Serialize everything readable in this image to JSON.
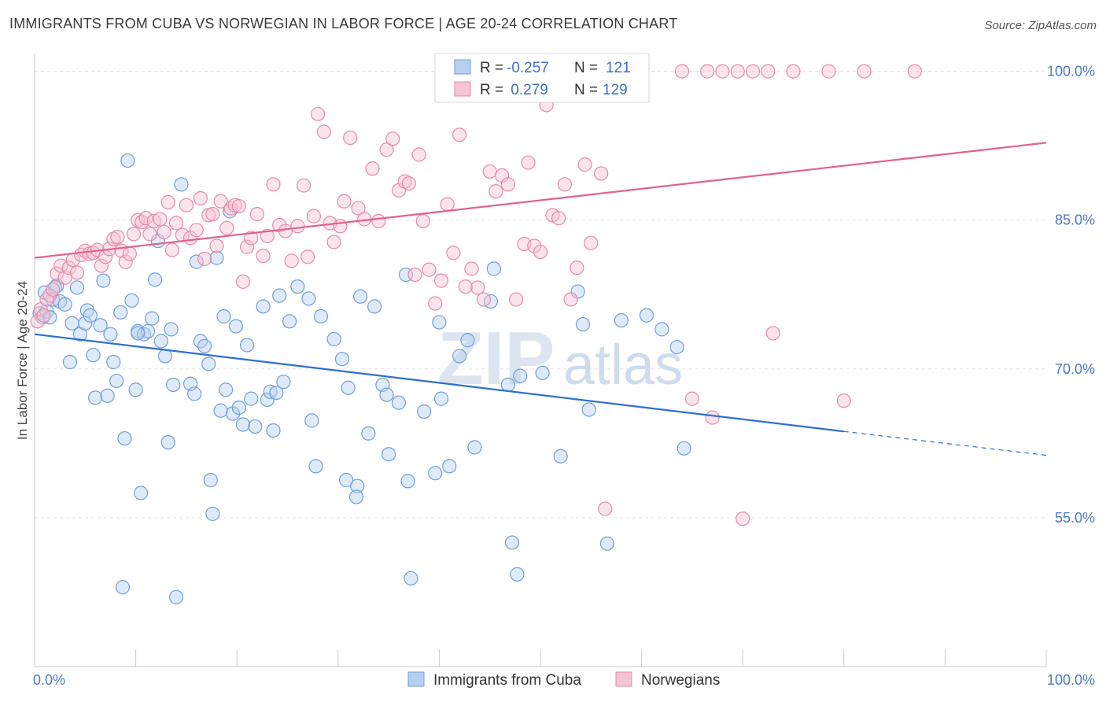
{
  "title": "IMMIGRANTS FROM CUBA VS NORWEGIAN IN LABOR FORCE | AGE 20-24 CORRELATION CHART",
  "source": "Source: ZipAtlas.com",
  "watermark": {
    "zip": "ZIP",
    "atlas": "atlas"
  },
  "colors": {
    "cuba_fill": "#b8d0f0",
    "cuba_stroke": "#6f9fd8",
    "cuba_line": "#2f6fd0",
    "nor_fill": "#f6c4d4",
    "nor_stroke": "#e68aa8",
    "nor_line": "#e0628e",
    "grid": "#e3e3e3",
    "tick_label": "#4a7ac4"
  },
  "legend": {
    "rows": [
      {
        "r_label": "R = ",
        "r_value": "-0.257",
        "n_label": "N = ",
        "n_value": "121"
      },
      {
        "r_label": "R = ",
        "r_value": " 0.279",
        "n_label": "N = ",
        "n_value": "129"
      }
    ]
  },
  "bottom_legend": [
    "Immigrants from Cuba",
    "Norwegians"
  ],
  "chart_data": {
    "type": "scatter",
    "title": "IMMIGRANTS FROM CUBA VS NORWEGIAN IN LABOR FORCE | AGE 20-24 CORRELATION CHART",
    "xlabel": "",
    "ylabel": "In Labor Force | Age 20-24",
    "xlim": [
      0,
      100
    ],
    "ylim": [
      40,
      101
    ],
    "x_tick_labels": [
      "0.0%",
      "100.0%"
    ],
    "y_ticks": [
      55,
      70,
      85,
      100
    ],
    "y_tick_labels": [
      "55.0%",
      "70.0%",
      "85.0%",
      "100.0%"
    ],
    "grid": true,
    "legend_placement": "top-center",
    "series": [
      {
        "name": "Immigrants from Cuba",
        "r": -0.257,
        "n": 121,
        "trend": {
          "x0": 0,
          "y0": 73.5,
          "x1": 80,
          "y1": 63.7,
          "dashed_to_x": 100,
          "dashed_to_y": 61.3
        },
        "points": [
          [
            0.5,
            75.6
          ],
          [
            0.8,
            75.2
          ],
          [
            1.0,
            77.7
          ],
          [
            1.2,
            75.8
          ],
          [
            1.5,
            75.2
          ],
          [
            1.8,
            77.0
          ],
          [
            2.0,
            78.2
          ],
          [
            2.2,
            78.4
          ],
          [
            2.5,
            76.8
          ],
          [
            3.0,
            76.5
          ],
          [
            3.5,
            70.7
          ],
          [
            3.7,
            74.6
          ],
          [
            4.2,
            78.2
          ],
          [
            4.5,
            73.5
          ],
          [
            5.0,
            74.6
          ],
          [
            5.2,
            75.9
          ],
          [
            5.5,
            75.4
          ],
          [
            5.8,
            71.4
          ],
          [
            6.0,
            67.1
          ],
          [
            6.5,
            74.4
          ],
          [
            6.8,
            78.9
          ],
          [
            7.2,
            67.3
          ],
          [
            7.5,
            73.5
          ],
          [
            7.8,
            70.7
          ],
          [
            8.1,
            68.8
          ],
          [
            8.5,
            75.7
          ],
          [
            8.9,
            63.0
          ],
          [
            9.2,
            91.0
          ],
          [
            9.6,
            76.9
          ],
          [
            10.0,
            67.9
          ],
          [
            10.2,
            73.8
          ],
          [
            10.5,
            57.5
          ],
          [
            10.8,
            73.5
          ],
          [
            11.2,
            73.8
          ],
          [
            11.6,
            75.1
          ],
          [
            11.9,
            79.0
          ],
          [
            12.2,
            82.9
          ],
          [
            12.5,
            72.8
          ],
          [
            12.9,
            71.3
          ],
          [
            13.2,
            62.6
          ],
          [
            13.5,
            74.0
          ],
          [
            13.7,
            68.4
          ],
          [
            14.5,
            88.6
          ],
          [
            15.4,
            68.5
          ],
          [
            15.8,
            67.5
          ],
          [
            16.0,
            80.8
          ],
          [
            16.4,
            72.8
          ],
          [
            16.8,
            72.3
          ],
          [
            17.2,
            70.5
          ],
          [
            17.4,
            58.8
          ],
          [
            17.6,
            55.4
          ],
          [
            18.0,
            81.2
          ],
          [
            18.4,
            65.8
          ],
          [
            18.7,
            75.3
          ],
          [
            18.9,
            67.9
          ],
          [
            19.3,
            85.9
          ],
          [
            19.6,
            65.5
          ],
          [
            19.9,
            74.3
          ],
          [
            20.2,
            66.1
          ],
          [
            20.6,
            64.4
          ],
          [
            21.0,
            72.4
          ],
          [
            21.4,
            67.0
          ],
          [
            21.8,
            64.2
          ],
          [
            22.6,
            76.3
          ],
          [
            23.0,
            66.9
          ],
          [
            23.3,
            67.7
          ],
          [
            23.6,
            63.8
          ],
          [
            23.9,
            67.6
          ],
          [
            24.2,
            77.4
          ],
          [
            24.6,
            68.7
          ],
          [
            25.2,
            74.8
          ],
          [
            26.0,
            78.3
          ],
          [
            27.1,
            77.1
          ],
          [
            27.4,
            64.8
          ],
          [
            27.8,
            60.2
          ],
          [
            28.3,
            75.3
          ],
          [
            29.6,
            73.0
          ],
          [
            30.4,
            71.0
          ],
          [
            30.8,
            58.8
          ],
          [
            31.0,
            68.1
          ],
          [
            31.9,
            58.2
          ],
          [
            32.2,
            77.3
          ],
          [
            33.0,
            63.5
          ],
          [
            33.6,
            76.3
          ],
          [
            34.4,
            68.4
          ],
          [
            34.8,
            67.4
          ],
          [
            35.0,
            61.4
          ],
          [
            36.0,
            66.6
          ],
          [
            36.7,
            79.5
          ],
          [
            36.9,
            58.7
          ],
          [
            37.2,
            48.9
          ],
          [
            38.5,
            65.7
          ],
          [
            39.6,
            59.5
          ],
          [
            40.0,
            74.7
          ],
          [
            40.2,
            67.0
          ],
          [
            41.0,
            60.2
          ],
          [
            42.0,
            71.3
          ],
          [
            42.8,
            72.9
          ],
          [
            43.5,
            62.1
          ],
          [
            45.1,
            76.8
          ],
          [
            45.4,
            80.1
          ],
          [
            46.8,
            68.4
          ],
          [
            47.2,
            52.5
          ],
          [
            47.7,
            49.3
          ],
          [
            48.0,
            69.3
          ],
          [
            50.2,
            69.6
          ],
          [
            52.0,
            61.2
          ],
          [
            53.7,
            77.8
          ],
          [
            54.2,
            74.5
          ],
          [
            54.8,
            65.9
          ],
          [
            56.6,
            52.4
          ],
          [
            58.0,
            74.9
          ],
          [
            60.5,
            75.4
          ],
          [
            62.0,
            74.0
          ],
          [
            63.5,
            72.2
          ],
          [
            64.2,
            62.0
          ],
          [
            8.7,
            48.0
          ],
          [
            14.0,
            47.0
          ],
          [
            10.2,
            73.6
          ],
          [
            31.8,
            57.1
          ]
        ]
      },
      {
        "name": "Norwegians",
        "r": 0.279,
        "n": 129,
        "trend": {
          "x0": 0,
          "y0": 81.2,
          "x1": 100,
          "y1": 92.8
        },
        "points": [
          [
            0.3,
            74.8
          ],
          [
            0.6,
            76.0
          ],
          [
            0.9,
            75.4
          ],
          [
            1.2,
            77.0
          ],
          [
            1.5,
            77.4
          ],
          [
            1.8,
            78.0
          ],
          [
            2.2,
            79.6
          ],
          [
            2.6,
            80.4
          ],
          [
            3.0,
            79.2
          ],
          [
            3.4,
            80.2
          ],
          [
            3.8,
            81.0
          ],
          [
            4.2,
            79.7
          ],
          [
            4.6,
            81.5
          ],
          [
            5.0,
            81.9
          ],
          [
            5.4,
            81.6
          ],
          [
            5.8,
            81.7
          ],
          [
            6.2,
            82.0
          ],
          [
            6.6,
            80.4
          ],
          [
            7.0,
            81.3
          ],
          [
            7.4,
            82.1
          ],
          [
            7.8,
            83.1
          ],
          [
            8.2,
            83.3
          ],
          [
            8.6,
            81.9
          ],
          [
            9.0,
            80.8
          ],
          [
            9.4,
            81.6
          ],
          [
            9.8,
            83.6
          ],
          [
            10.2,
            85.0
          ],
          [
            10.6,
            84.8
          ],
          [
            11.0,
            85.2
          ],
          [
            11.4,
            83.6
          ],
          [
            11.8,
            84.9
          ],
          [
            12.4,
            85.1
          ],
          [
            12.8,
            83.8
          ],
          [
            13.2,
            86.8
          ],
          [
            13.6,
            82.0
          ],
          [
            14.0,
            84.7
          ],
          [
            14.6,
            83.5
          ],
          [
            15.0,
            86.5
          ],
          [
            15.4,
            83.2
          ],
          [
            16.0,
            84.0
          ],
          [
            16.4,
            87.2
          ],
          [
            16.8,
            81.1
          ],
          [
            17.2,
            85.5
          ],
          [
            17.6,
            85.6
          ],
          [
            18.0,
            82.4
          ],
          [
            18.4,
            86.9
          ],
          [
            19.0,
            84.2
          ],
          [
            19.4,
            86.2
          ],
          [
            19.8,
            86.5
          ],
          [
            20.2,
            86.4
          ],
          [
            20.6,
            78.8
          ],
          [
            21.0,
            82.3
          ],
          [
            21.4,
            83.2
          ],
          [
            22.0,
            85.6
          ],
          [
            22.6,
            81.4
          ],
          [
            23.0,
            83.4
          ],
          [
            23.6,
            88.6
          ],
          [
            24.2,
            84.5
          ],
          [
            24.8,
            83.9
          ],
          [
            25.4,
            80.9
          ],
          [
            26.0,
            84.4
          ],
          [
            26.6,
            88.5
          ],
          [
            27.0,
            81.3
          ],
          [
            27.6,
            85.4
          ],
          [
            28.0,
            95.7
          ],
          [
            28.6,
            93.9
          ],
          [
            29.2,
            84.7
          ],
          [
            29.6,
            82.8
          ],
          [
            30.2,
            84.4
          ],
          [
            30.6,
            86.9
          ],
          [
            31.2,
            93.3
          ],
          [
            32.0,
            86.2
          ],
          [
            32.6,
            85.1
          ],
          [
            33.4,
            90.2
          ],
          [
            34.0,
            84.9
          ],
          [
            34.8,
            92.1
          ],
          [
            35.4,
            93.2
          ],
          [
            36.0,
            88.0
          ],
          [
            36.6,
            88.9
          ],
          [
            37.0,
            88.7
          ],
          [
            37.6,
            79.5
          ],
          [
            38.0,
            91.6
          ],
          [
            38.4,
            84.9
          ],
          [
            39.0,
            80.0
          ],
          [
            39.6,
            76.6
          ],
          [
            40.2,
            78.9
          ],
          [
            40.8,
            86.6
          ],
          [
            41.4,
            81.7
          ],
          [
            42.0,
            93.6
          ],
          [
            42.6,
            78.3
          ],
          [
            43.2,
            80.1
          ],
          [
            43.8,
            78.2
          ],
          [
            44.4,
            77.0
          ],
          [
            45.0,
            89.9
          ],
          [
            45.6,
            87.9
          ],
          [
            46.2,
            89.5
          ],
          [
            46.8,
            88.6
          ],
          [
            47.6,
            77.0
          ],
          [
            48.4,
            82.6
          ],
          [
            48.8,
            90.8
          ],
          [
            49.4,
            82.4
          ],
          [
            50.0,
            81.8
          ],
          [
            50.6,
            96.6
          ],
          [
            51.2,
            85.5
          ],
          [
            51.8,
            85.2
          ],
          [
            52.4,
            88.6
          ],
          [
            53.0,
            77.0
          ],
          [
            53.6,
            80.2
          ],
          [
            54.4,
            90.6
          ],
          [
            55.0,
            82.7
          ],
          [
            56.0,
            89.7
          ],
          [
            56.4,
            55.9
          ],
          [
            47.0,
            100.0
          ],
          [
            51.0,
            100.0
          ],
          [
            55.0,
            100.0
          ],
          [
            59.0,
            100.0
          ],
          [
            64.0,
            100.0
          ],
          [
            66.5,
            100.0
          ],
          [
            68.0,
            100.0
          ],
          [
            69.5,
            100.0
          ],
          [
            71.0,
            100.0
          ],
          [
            72.5,
            100.0
          ],
          [
            75.0,
            100.0
          ],
          [
            78.5,
            100.0
          ],
          [
            82.0,
            100.0
          ],
          [
            87.0,
            100.0
          ],
          [
            73.0,
            73.6
          ],
          [
            70.0,
            54.9
          ],
          [
            65.0,
            67.0
          ],
          [
            67.0,
            65.1
          ],
          [
            80.0,
            66.8
          ]
        ]
      }
    ]
  }
}
